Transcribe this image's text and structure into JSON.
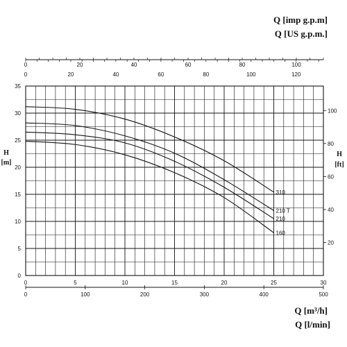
{
  "chart_data": {
    "type": "line",
    "titles": {
      "q_imp": "Q [imp g.p.m]",
      "q_us": "Q [US g.p.m.]",
      "q_m3h": "Q [m³/h]",
      "q_lmin": "Q [l/min]",
      "h_left_1": "H",
      "h_left_2": "[m]",
      "h_right_1": "H",
      "h_right_2": "[ft]"
    },
    "axes": {
      "x_m3h": {
        "min": 0,
        "max": 30,
        "ticks": [
          0,
          5,
          10,
          15,
          20,
          25,
          30
        ]
      },
      "x_lmin": {
        "min": 0,
        "max": 500,
        "ticks": [
          0,
          100,
          200,
          300,
          400,
          500
        ]
      },
      "x_imp_gpm": {
        "min": 0,
        "max": 110,
        "ticks": [
          0,
          20,
          40,
          60,
          80,
          100
        ]
      },
      "x_us_gpm": {
        "min": 0,
        "max": 132,
        "ticks": [
          0,
          20,
          40,
          60,
          80,
          100,
          120
        ]
      },
      "y_m": {
        "min": 0,
        "max": 35,
        "ticks": [
          0,
          5,
          10,
          15,
          20,
          25,
          30,
          35
        ]
      },
      "y_ft": {
        "ticks": [
          20,
          40,
          60,
          80,
          100
        ]
      }
    },
    "grid": true,
    "series": [
      {
        "name": "310",
        "x": [
          0,
          5,
          10,
          15,
          20,
          25
        ],
        "y": [
          31.2,
          30.7,
          28.9,
          25.6,
          21.2,
          15.4
        ]
      },
      {
        "name": "210 T",
        "x": [
          0,
          5,
          10,
          15,
          20,
          25
        ],
        "y": [
          28.2,
          27.7,
          25.8,
          22.6,
          17.7,
          12.0
        ]
      },
      {
        "name": "210",
        "x": [
          0,
          5,
          10,
          15,
          20,
          25
        ],
        "y": [
          26.5,
          26.0,
          24.5,
          21.1,
          16.3,
          10.5
        ]
      },
      {
        "name": "160",
        "x": [
          0,
          5,
          10,
          15,
          20,
          25
        ],
        "y": [
          24.8,
          24.2,
          22.3,
          19.0,
          14.4,
          7.9
        ]
      }
    ]
  }
}
